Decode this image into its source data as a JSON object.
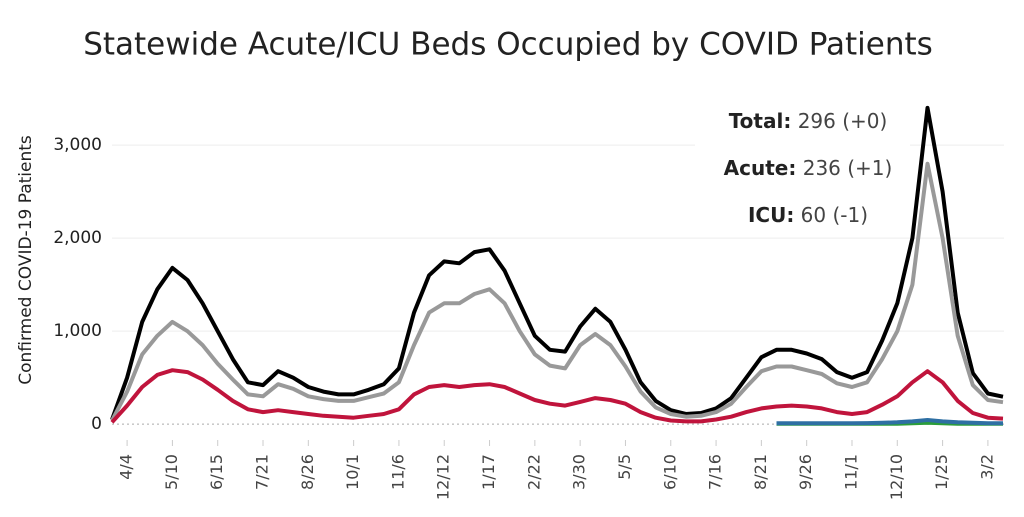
{
  "chart_data": {
    "type": "line",
    "title": "Statewide Acute/ICU Beds Occupied by COVID Patients",
    "y_label": "Confirmed COVID-19 Patients",
    "categories": [
      null,
      "4/4",
      null,
      null,
      "5/10",
      null,
      null,
      "6/15",
      null,
      null,
      "7/21",
      null,
      null,
      "8/26",
      null,
      null,
      "10/1",
      null,
      null,
      "11/6",
      null,
      null,
      "12/12",
      null,
      null,
      "1/17",
      null,
      null,
      "2/22",
      null,
      null,
      "3/30",
      null,
      null,
      "5/5",
      null,
      null,
      "6/10",
      null,
      null,
      "7/16",
      null,
      null,
      "8/21",
      null,
      null,
      "9/26",
      null,
      null,
      "11/1",
      null,
      null,
      "12/10",
      null,
      null,
      "1/25",
      null,
      null,
      "3/2",
      null
    ],
    "series": [
      {
        "color": "#000000",
        "values": [
          50,
          500,
          1100,
          1450,
          1680,
          1550,
          1300,
          1000,
          700,
          450,
          420,
          570,
          500,
          400,
          350,
          320,
          320,
          370,
          430,
          600,
          1200,
          1600,
          1750,
          1730,
          1850,
          1880,
          1650,
          1300,
          950,
          800,
          780,
          1050,
          1240,
          1100,
          800,
          450,
          250,
          150,
          110,
          120,
          170,
          280,
          500,
          720,
          800,
          800,
          760,
          700,
          560,
          500,
          560,
          900,
          1300,
          2000,
          3400,
          2500,
          1200,
          550,
          330,
          296
        ]
      },
      {
        "color": "#999999",
        "values": [
          40,
          350,
          750,
          950,
          1100,
          1000,
          850,
          650,
          480,
          320,
          300,
          430,
          380,
          300,
          270,
          250,
          250,
          290,
          330,
          450,
          850,
          1200,
          1300,
          1300,
          1400,
          1450,
          1300,
          1000,
          750,
          630,
          600,
          850,
          970,
          850,
          620,
          350,
          180,
          110,
          80,
          90,
          130,
          220,
          400,
          570,
          620,
          620,
          580,
          540,
          440,
          400,
          450,
          700,
          1000,
          1500,
          2800,
          2000,
          950,
          420,
          260,
          236
        ]
      },
      {
        "color": "#c0143c",
        "values": [
          20,
          200,
          400,
          530,
          580,
          560,
          480,
          370,
          250,
          160,
          130,
          150,
          130,
          110,
          90,
          80,
          70,
          90,
          110,
          160,
          320,
          400,
          420,
          400,
          420,
          430,
          400,
          330,
          260,
          220,
          200,
          240,
          280,
          260,
          220,
          130,
          70,
          40,
          30,
          30,
          50,
          80,
          130,
          170,
          190,
          200,
          190,
          170,
          130,
          110,
          130,
          210,
          300,
          450,
          570,
          450,
          250,
          120,
          70,
          60
        ]
      },
      {
        "color": "#2a9d3a",
        "values": [
          null,
          null,
          null,
          null,
          null,
          null,
          null,
          null,
          null,
          null,
          null,
          null,
          null,
          null,
          null,
          null,
          null,
          null,
          null,
          null,
          null,
          null,
          null,
          null,
          null,
          null,
          null,
          null,
          null,
          null,
          null,
          null,
          null,
          null,
          null,
          null,
          null,
          null,
          null,
          null,
          null,
          null,
          null,
          null,
          5,
          5,
          5,
          5,
          5,
          5,
          5,
          5,
          5,
          10,
          15,
          10,
          5,
          5,
          5,
          5
        ]
      },
      {
        "color": "#2e6fa3",
        "values": [
          null,
          null,
          null,
          null,
          null,
          null,
          null,
          null,
          null,
          null,
          null,
          null,
          null,
          null,
          null,
          null,
          null,
          null,
          null,
          null,
          null,
          null,
          null,
          null,
          null,
          null,
          null,
          null,
          null,
          null,
          null,
          null,
          null,
          null,
          null,
          null,
          null,
          null,
          null,
          null,
          null,
          null,
          null,
          null,
          10,
          10,
          10,
          10,
          10,
          10,
          12,
          15,
          20,
          30,
          45,
          30,
          20,
          15,
          10,
          10
        ]
      }
    ],
    "ylim": [
      -170,
      3700
    ],
    "yticks": [
      0,
      {
        "value": 1000,
        "label": "1,000"
      },
      {
        "value": 2000,
        "label": "2,000"
      },
      {
        "value": 3000,
        "label": "3,000"
      }
    ],
    "grid": true,
    "annotations": [
      {
        "label": "Total:",
        "text": "296 (+0)"
      },
      {
        "label": "Acute:",
        "text": "236 (+1)"
      },
      {
        "label": "ICU:",
        "text": "60 (-1)"
      }
    ]
  }
}
